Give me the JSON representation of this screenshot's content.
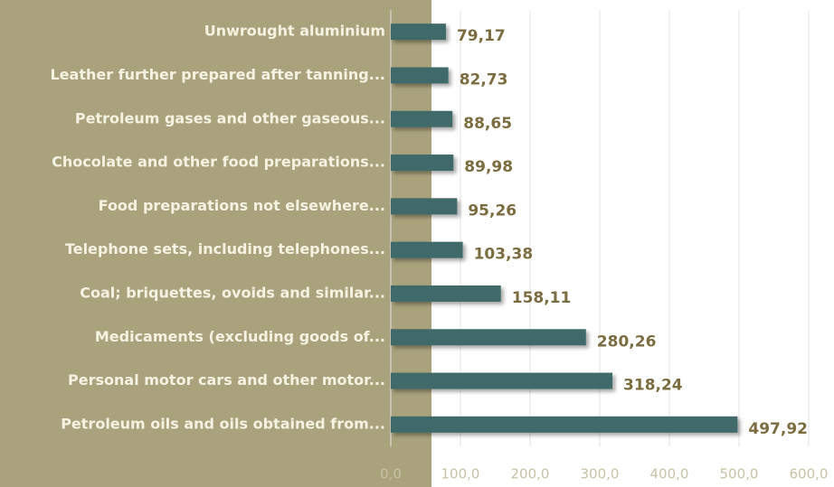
{
  "chart_data": {
    "type": "bar",
    "orientation": "horizontal",
    "categories": [
      "Unwrought aluminium",
      "Leather further prepared after tanning...",
      "Petroleum gases and other gaseous...",
      "Chocolate and other food preparations...",
      "Food preparations not elsewhere...",
      "Telephone sets, including telephones...",
      "Coal; briquettes, ovoids and similar...",
      "Medicaments (excluding goods of...",
      "Personal motor cars and other motor...",
      "Petroleum oils and oils obtained from..."
    ],
    "values": [
      79.17,
      82.73,
      88.65,
      89.98,
      95.26,
      103.38,
      158.11,
      280.26,
      318.24,
      497.92
    ],
    "value_labels": [
      "79,17",
      "82,73",
      "88,65",
      "89,98",
      "95,26",
      "103,38",
      "158,11",
      "280,26",
      "318,24",
      "497,92"
    ],
    "color": "#416b69",
    "xlim": [
      0,
      600
    ],
    "xticks": [
      {
        "value": 0,
        "label": "0,0"
      },
      {
        "value": 100,
        "label": "100,0"
      },
      {
        "value": 200,
        "label": "200,0"
      },
      {
        "value": 300,
        "label": "300,0"
      },
      {
        "value": 400,
        "label": "400,0"
      },
      {
        "value": 500,
        "label": "500,0"
      },
      {
        "value": 600,
        "label": "600,0"
      }
    ],
    "grid": true
  }
}
